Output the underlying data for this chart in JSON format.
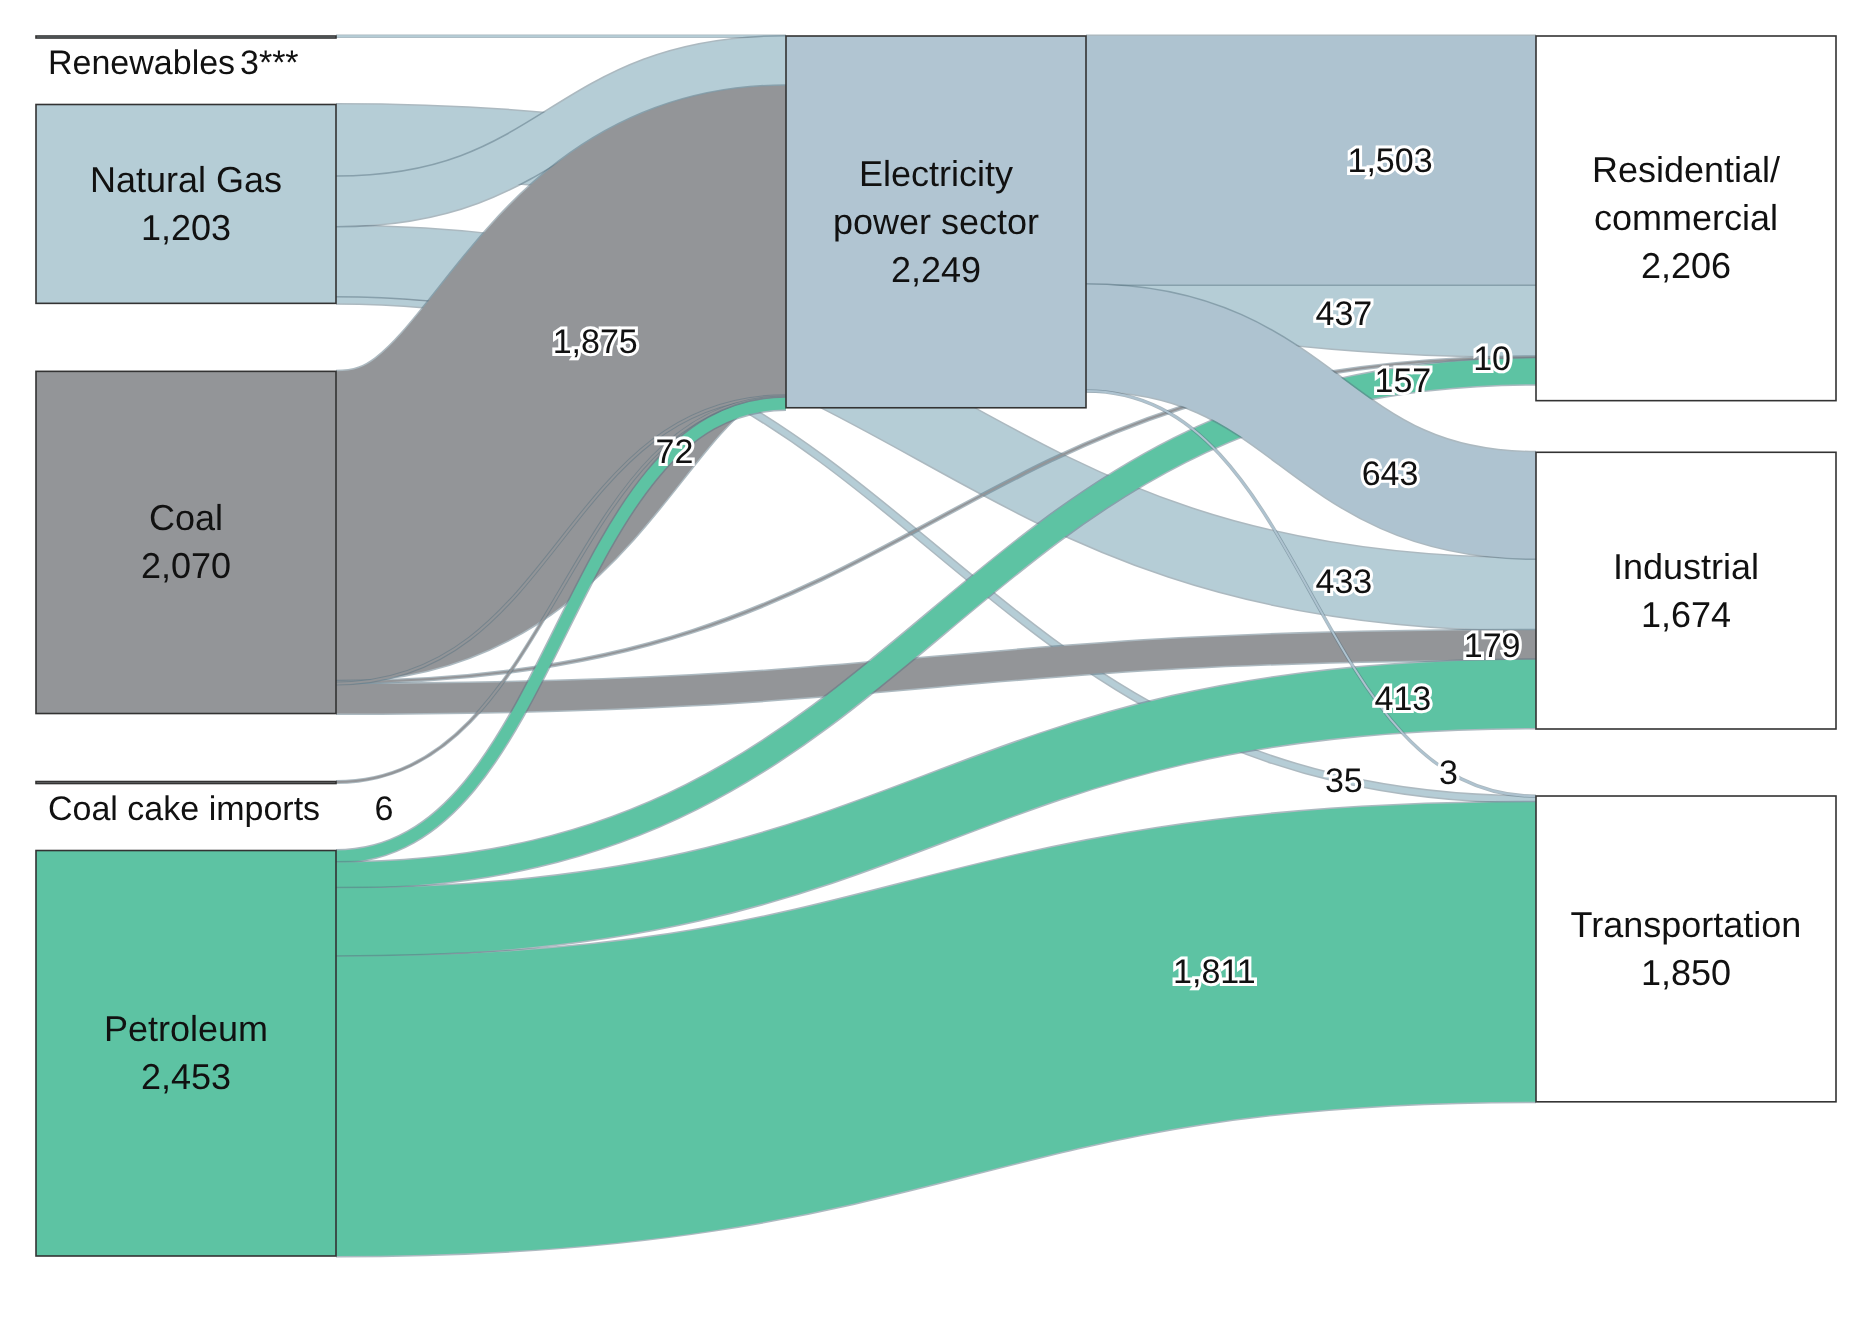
{
  "chart_data": {
    "type": "other",
    "categories": [
      "Renewables",
      "Natural Gas",
      "Coal",
      "Coal cake imports",
      "Petroleum",
      "Electricity power sector",
      "Residential/ commercial",
      "Industrial",
      "Transportation"
    ],
    "values": [
      3,
      1203,
      2070,
      6,
      2453,
      2249,
      2206,
      1674,
      1850
    ],
    "value_labels": [
      "3***",
      "1,203",
      "2,070",
      "6",
      "2,453",
      "2,249",
      "2,206",
      "1,674",
      "1,850"
    ],
    "colors": [
      "#b5cdd6",
      "#b5cdd6",
      "#939598",
      "#939598",
      "#5dc3a3",
      "#b1c5d2",
      "#ffffff",
      "#ffffff",
      "#ffffff"
    ],
    "series": [
      {
        "color": "#b5cdd6",
        "values": [
          null,
          null,
          null,
          null,
          null,
          null,
          null,
          null,
          null
        ]
      },
      {
        "color": "#b5cdd6",
        "values": [
          null,
          null,
          null,
          null,
          null,
          null,
          437,
          433,
          35
        ],
        "value_labels": [
          null,
          null,
          null,
          null,
          null,
          null,
          "437",
          "433",
          "35"
        ]
      },
      {
        "color": "#939598",
        "values": [
          null,
          null,
          null,
          null,
          null,
          1875,
          10,
          179,
          null
        ],
        "value_labels": [
          null,
          null,
          null,
          null,
          null,
          "1,875",
          "10",
          "179",
          null
        ]
      },
      {
        "color": "#939598",
        "values": [
          null,
          null,
          null,
          null,
          null,
          null,
          null,
          null,
          null
        ]
      },
      {
        "color": "#5dc3a3",
        "values": [
          null,
          null,
          null,
          null,
          null,
          72,
          157,
          413,
          1811
        ],
        "value_labels": [
          null,
          null,
          null,
          null,
          null,
          "72",
          "157",
          "413",
          "1,811"
        ]
      },
      {
        "color": "#aec3d0",
        "values": [
          null,
          null,
          null,
          null,
          null,
          null,
          1503,
          643,
          3
        ],
        "value_labels": [
          null,
          null,
          null,
          null,
          null,
          null,
          "1,503",
          "643",
          "3"
        ]
      }
    ]
  }
}
